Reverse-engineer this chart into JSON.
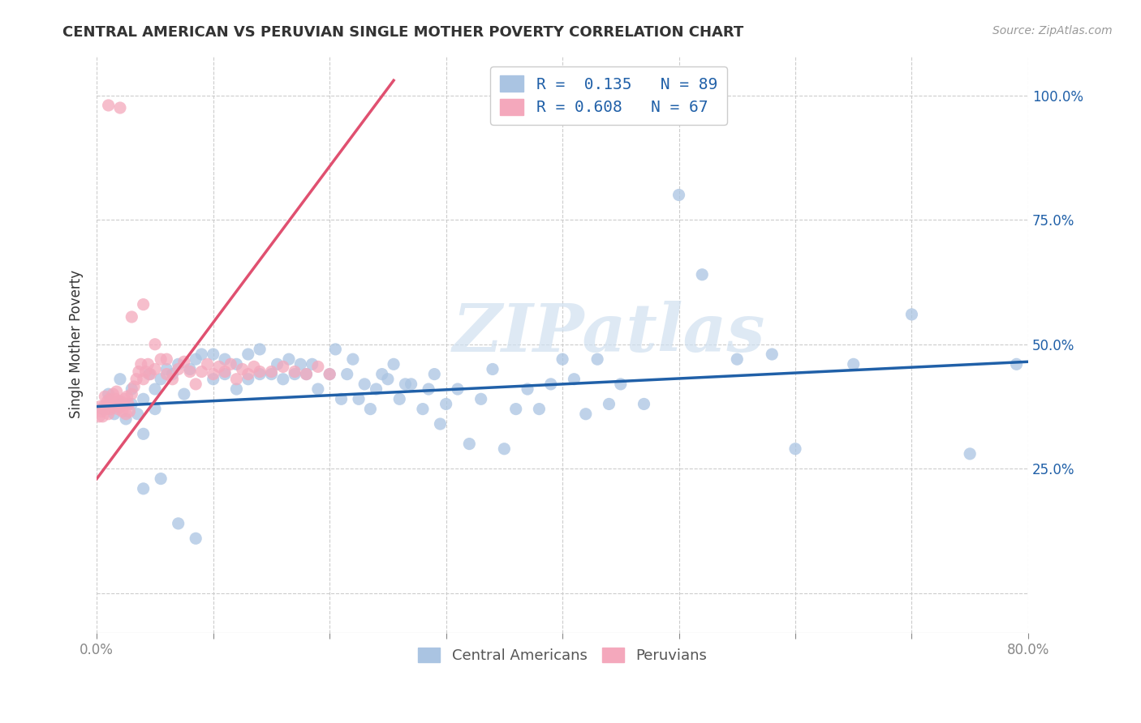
{
  "title": "CENTRAL AMERICAN VS PERUVIAN SINGLE MOTHER POVERTY CORRELATION CHART",
  "source": "Source: ZipAtlas.com",
  "ylabel": "Single Mother Poverty",
  "xlim": [
    0.0,
    0.8
  ],
  "ylim": [
    -0.08,
    1.08
  ],
  "xtick_positions": [
    0.0,
    0.1,
    0.2,
    0.3,
    0.4,
    0.5,
    0.6,
    0.7,
    0.8
  ],
  "xticklabels": [
    "0.0%",
    "",
    "",
    "",
    "",
    "",
    "",
    "",
    "80.0%"
  ],
  "ytick_positions": [
    0.0,
    0.25,
    0.5,
    0.75,
    1.0
  ],
  "yticklabels_right": [
    "",
    "25.0%",
    "50.0%",
    "75.0%",
    "100.0%"
  ],
  "blue_color": "#aac4e2",
  "pink_color": "#f4a8bc",
  "blue_line_color": "#2060a8",
  "pink_line_color": "#e05070",
  "legend_text_color": "#2060a8",
  "watermark": "ZIPatlas",
  "blue_scatter_x": [
    0.005,
    0.01,
    0.015,
    0.02,
    0.02,
    0.025,
    0.03,
    0.03,
    0.035,
    0.04,
    0.04,
    0.045,
    0.05,
    0.05,
    0.055,
    0.06,
    0.065,
    0.07,
    0.075,
    0.08,
    0.085,
    0.09,
    0.1,
    0.1,
    0.11,
    0.11,
    0.12,
    0.12,
    0.13,
    0.13,
    0.14,
    0.14,
    0.15,
    0.155,
    0.16,
    0.165,
    0.17,
    0.175,
    0.18,
    0.185,
    0.19,
    0.2,
    0.205,
    0.21,
    0.215,
    0.22,
    0.225,
    0.23,
    0.235,
    0.24,
    0.245,
    0.25,
    0.255,
    0.26,
    0.265,
    0.27,
    0.28,
    0.285,
    0.29,
    0.295,
    0.3,
    0.31,
    0.32,
    0.33,
    0.34,
    0.35,
    0.36,
    0.37,
    0.38,
    0.39,
    0.4,
    0.41,
    0.42,
    0.43,
    0.44,
    0.45,
    0.47,
    0.5,
    0.52,
    0.55,
    0.58,
    0.6,
    0.65,
    0.7,
    0.75,
    0.79,
    0.04,
    0.055,
    0.07,
    0.085
  ],
  "blue_scatter_y": [
    0.37,
    0.4,
    0.36,
    0.38,
    0.43,
    0.35,
    0.38,
    0.41,
    0.36,
    0.32,
    0.39,
    0.44,
    0.37,
    0.41,
    0.43,
    0.45,
    0.44,
    0.46,
    0.4,
    0.45,
    0.47,
    0.48,
    0.43,
    0.48,
    0.44,
    0.47,
    0.41,
    0.46,
    0.43,
    0.48,
    0.44,
    0.49,
    0.44,
    0.46,
    0.43,
    0.47,
    0.44,
    0.46,
    0.44,
    0.46,
    0.41,
    0.44,
    0.49,
    0.39,
    0.44,
    0.47,
    0.39,
    0.42,
    0.37,
    0.41,
    0.44,
    0.43,
    0.46,
    0.39,
    0.42,
    0.42,
    0.37,
    0.41,
    0.44,
    0.34,
    0.38,
    0.41,
    0.3,
    0.39,
    0.45,
    0.29,
    0.37,
    0.41,
    0.37,
    0.42,
    0.47,
    0.43,
    0.36,
    0.47,
    0.38,
    0.42,
    0.38,
    0.8,
    0.64,
    0.47,
    0.48,
    0.29,
    0.46,
    0.56,
    0.28,
    0.46,
    0.21,
    0.23,
    0.14,
    0.11
  ],
  "pink_scatter_x": [
    0.002,
    0.003,
    0.004,
    0.005,
    0.006,
    0.007,
    0.008,
    0.009,
    0.01,
    0.011,
    0.012,
    0.013,
    0.014,
    0.015,
    0.016,
    0.017,
    0.018,
    0.019,
    0.02,
    0.021,
    0.022,
    0.023,
    0.024,
    0.025,
    0.026,
    0.027,
    0.028,
    0.03,
    0.032,
    0.034,
    0.036,
    0.038,
    0.04,
    0.042,
    0.044,
    0.046,
    0.05,
    0.055,
    0.06,
    0.065,
    0.07,
    0.075,
    0.08,
    0.085,
    0.09,
    0.095,
    0.1,
    0.105,
    0.11,
    0.115,
    0.12,
    0.125,
    0.13,
    0.135,
    0.14,
    0.15,
    0.16,
    0.17,
    0.18,
    0.19,
    0.2,
    0.01,
    0.02,
    0.03,
    0.04,
    0.05,
    0.06
  ],
  "pink_scatter_y": [
    0.355,
    0.375,
    0.365,
    0.355,
    0.375,
    0.395,
    0.37,
    0.385,
    0.36,
    0.39,
    0.37,
    0.385,
    0.4,
    0.375,
    0.39,
    0.405,
    0.37,
    0.385,
    0.375,
    0.385,
    0.365,
    0.38,
    0.39,
    0.36,
    0.395,
    0.38,
    0.365,
    0.4,
    0.415,
    0.43,
    0.445,
    0.46,
    0.43,
    0.445,
    0.46,
    0.44,
    0.45,
    0.47,
    0.44,
    0.43,
    0.45,
    0.465,
    0.445,
    0.42,
    0.445,
    0.46,
    0.44,
    0.455,
    0.445,
    0.46,
    0.43,
    0.45,
    0.44,
    0.455,
    0.445,
    0.445,
    0.455,
    0.445,
    0.44,
    0.455,
    0.44,
    0.98,
    0.975,
    0.555,
    0.58,
    0.5,
    0.47
  ],
  "blue_line_x": [
    0.0,
    0.8
  ],
  "blue_line_y": [
    0.375,
    0.465
  ],
  "pink_line_x": [
    0.0,
    0.255
  ],
  "pink_line_y": [
    0.23,
    1.03
  ],
  "background_color": "#ffffff",
  "grid_color": "#cccccc"
}
